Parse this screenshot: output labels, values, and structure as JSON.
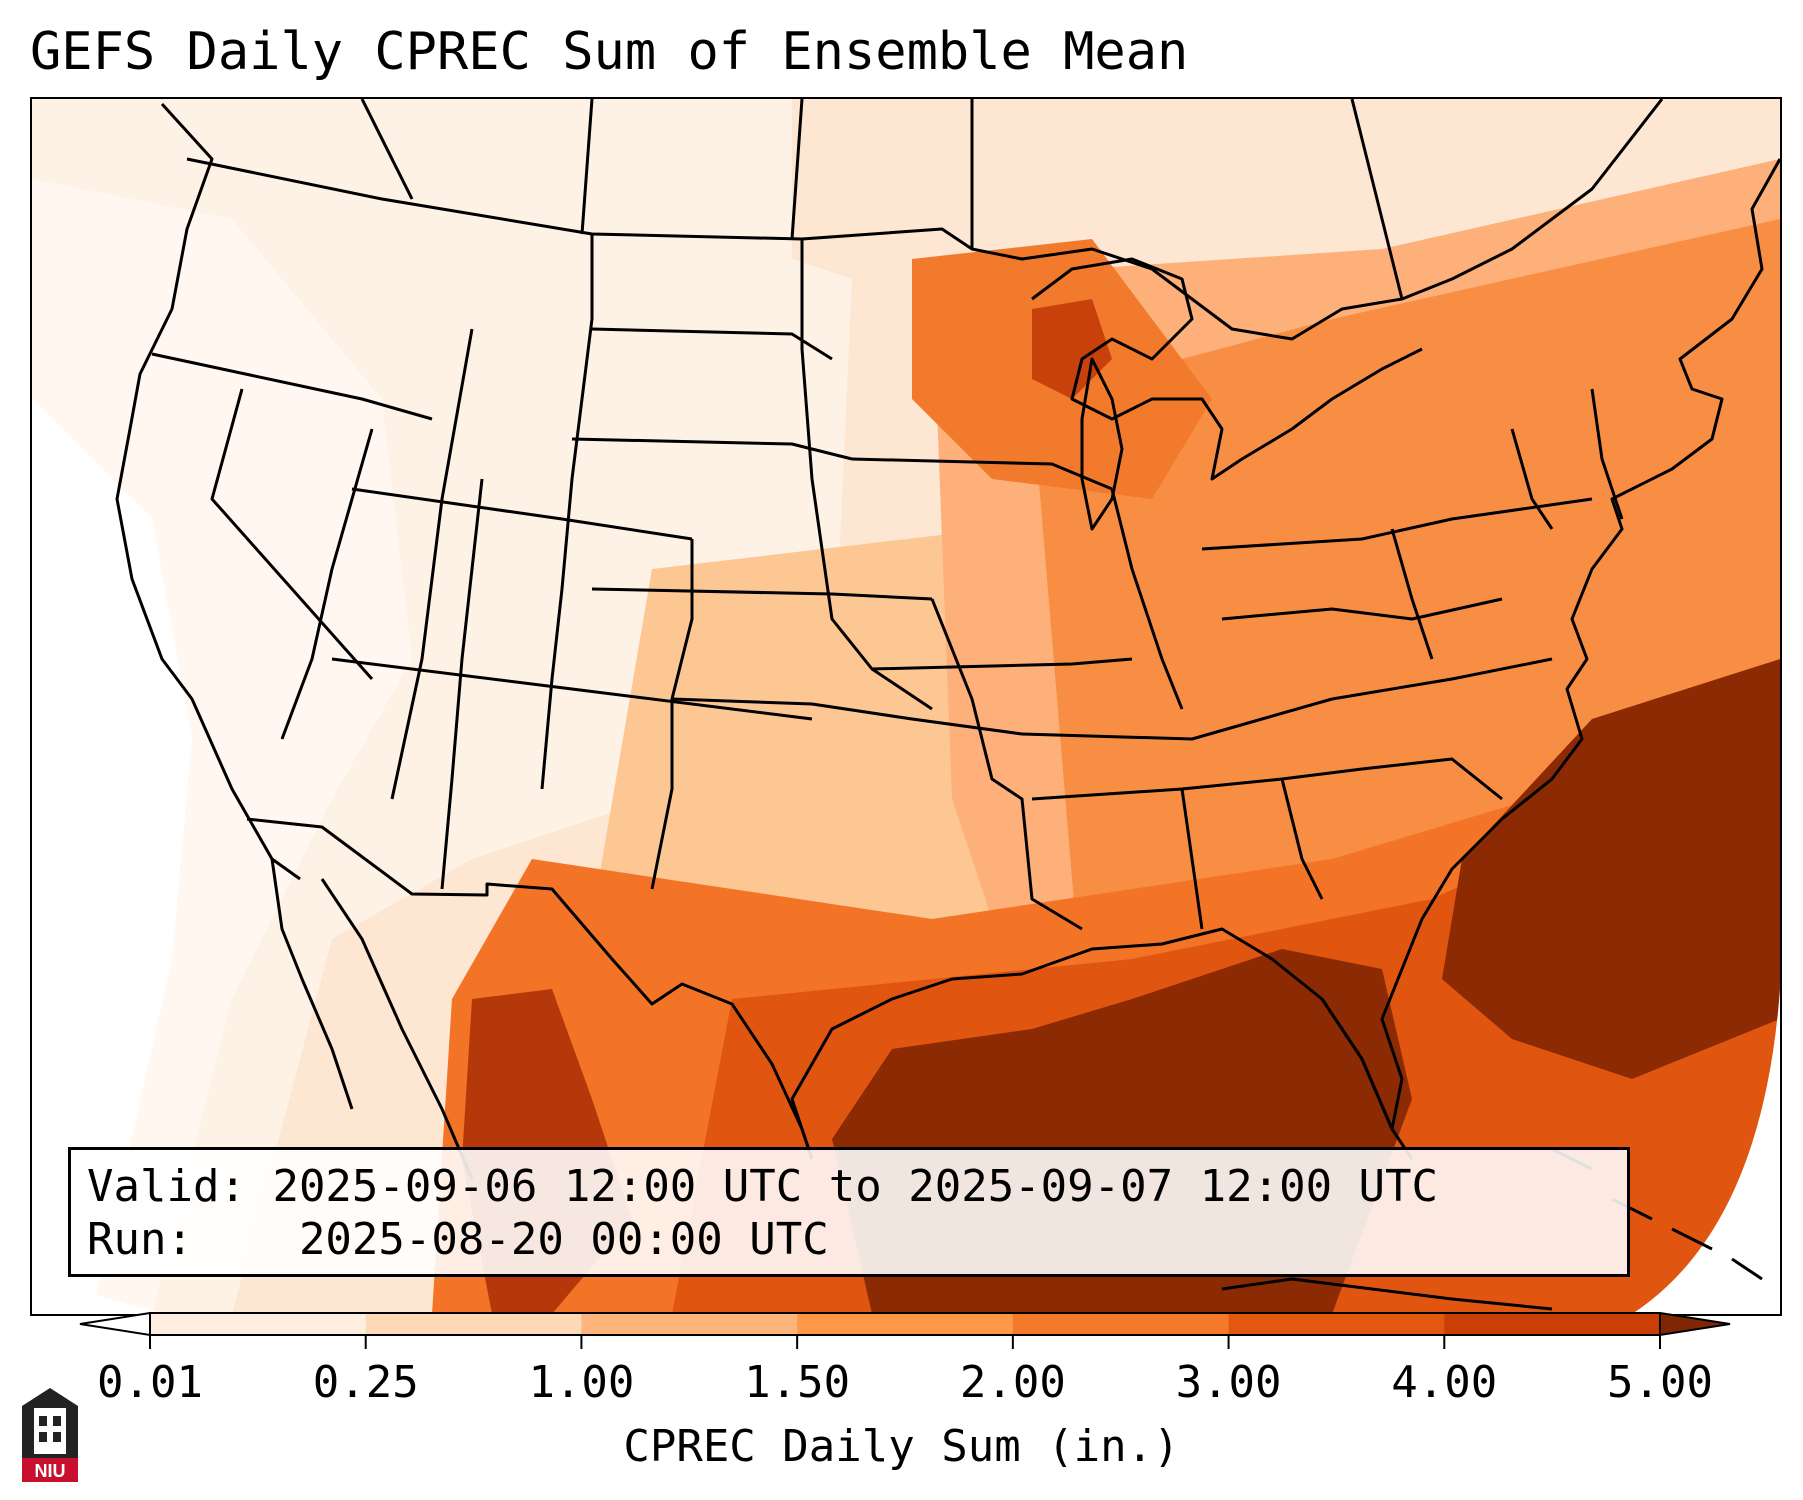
{
  "title": "GEFS Daily CPREC Sum of Ensemble Mean",
  "info_box": {
    "valid_label": "Valid:",
    "valid_value": "2025-09-06 12:00 UTC to 2025-09-07 12:00 UTC",
    "run_label": "Run:",
    "run_value": "2025-08-20 00:00 UTC"
  },
  "colorbar": {
    "label": "CPREC Daily Sum (in.)",
    "ticks": [
      "0.01",
      "0.25",
      "1.00",
      "1.50",
      "2.00",
      "3.00",
      "4.00",
      "5.00"
    ],
    "colors": [
      "#feeee0",
      "#fdd9b8",
      "#fdb57c",
      "#fd9848",
      "#f5792a",
      "#e35711",
      "#c93f06",
      "#8c2a04"
    ],
    "under_color": "#ffffff",
    "over_color": "#7f2704"
  },
  "logo": {
    "text": "NIU"
  },
  "colors": {
    "frame": "#000000",
    "background": "#ffffff",
    "logo_red": "#c8102e"
  }
}
